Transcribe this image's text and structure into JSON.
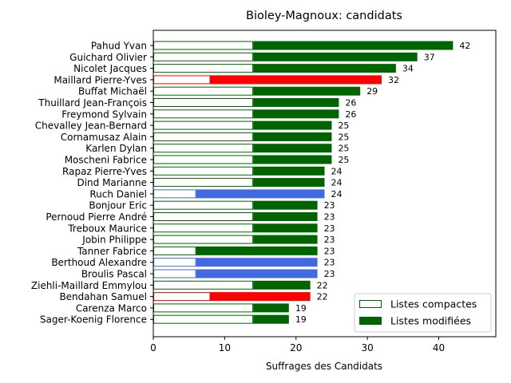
{
  "chart_data": {
    "type": "bar",
    "orientation": "horizontal",
    "stacked": true,
    "title": "Bioley-Magnoux: candidats",
    "xlabel": "Suffrages des Candidats",
    "ylabel": "",
    "xlim": [
      0,
      48
    ],
    "xticks": [
      0,
      10,
      20,
      30,
      40
    ],
    "legend_position": "bottom-right",
    "legend": [
      {
        "label": "Listes compactes",
        "style": "outline",
        "color": "#006400"
      },
      {
        "label": "Listes modifiées",
        "style": "filled",
        "color": "#006400"
      }
    ],
    "candidates": [
      {
        "name": "Pahud Yvan",
        "compact": 14,
        "total": 42,
        "color": "#006400"
      },
      {
        "name": "Guichard Olivier",
        "compact": 14,
        "total": 37,
        "color": "#006400"
      },
      {
        "name": "Nicolet Jacques",
        "compact": 14,
        "total": 34,
        "color": "#006400"
      },
      {
        "name": "Maillard Pierre-Yves",
        "compact": 8,
        "total": 32,
        "color": "#ff0000"
      },
      {
        "name": "Buffat Michaël",
        "compact": 14,
        "total": 29,
        "color": "#006400"
      },
      {
        "name": "Thuillard Jean-François",
        "compact": 14,
        "total": 26,
        "color": "#006400"
      },
      {
        "name": "Freymond Sylvain",
        "compact": 14,
        "total": 26,
        "color": "#006400"
      },
      {
        "name": "Chevalley Jean-Bernard",
        "compact": 14,
        "total": 25,
        "color": "#006400"
      },
      {
        "name": "Cornamusaz Alain",
        "compact": 14,
        "total": 25,
        "color": "#006400"
      },
      {
        "name": "Karlen Dylan",
        "compact": 14,
        "total": 25,
        "color": "#006400"
      },
      {
        "name": "Moscheni Fabrice",
        "compact": 14,
        "total": 25,
        "color": "#006400"
      },
      {
        "name": "Rapaz Pierre-Yves",
        "compact": 14,
        "total": 24,
        "color": "#006400"
      },
      {
        "name": "Dind Marianne",
        "compact": 14,
        "total": 24,
        "color": "#006400"
      },
      {
        "name": "Ruch Daniel",
        "compact": 6,
        "total": 24,
        "color": "#4169e1"
      },
      {
        "name": "Bonjour Eric",
        "compact": 14,
        "total": 23,
        "color": "#006400"
      },
      {
        "name": "Pernoud Pierre André",
        "compact": 14,
        "total": 23,
        "color": "#006400"
      },
      {
        "name": "Treboux Maurice",
        "compact": 14,
        "total": 23,
        "color": "#006400"
      },
      {
        "name": "Jobin Philippe",
        "compact": 14,
        "total": 23,
        "color": "#006400"
      },
      {
        "name": "Tanner Fabrice",
        "compact": 6,
        "total": 23,
        "color": "#006400"
      },
      {
        "name": "Berthoud Alexandre",
        "compact": 6,
        "total": 23,
        "color": "#4169e1"
      },
      {
        "name": "Broulis Pascal",
        "compact": 6,
        "total": 23,
        "color": "#4169e1"
      },
      {
        "name": "Ziehli-Maillard Emmylou",
        "compact": 14,
        "total": 22,
        "color": "#006400"
      },
      {
        "name": "Bendahan Samuel",
        "compact": 8,
        "total": 22,
        "color": "#ff0000"
      },
      {
        "name": "Carenza Marco",
        "compact": 14,
        "total": 19,
        "color": "#006400"
      },
      {
        "name": "Sager-Koenig Florence",
        "compact": 14,
        "total": 19,
        "color": "#006400"
      }
    ]
  }
}
